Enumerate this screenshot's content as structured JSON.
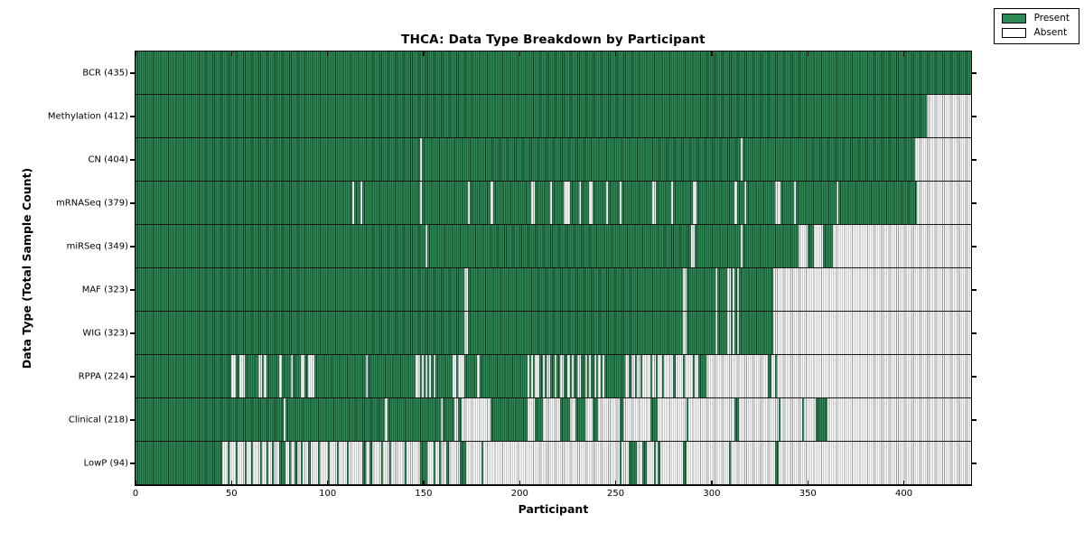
{
  "legend": {
    "present_label": "Present",
    "absent_label": "Absent"
  },
  "colors": {
    "present_fill": "#2e8b57",
    "present_edge": "#123c25",
    "absent_fill": "#ffffff",
    "absent_edge": "#9a9a9a",
    "frame": "#000000",
    "text": "#000000"
  },
  "chart_data": {
    "type": "heatmap",
    "title": "THCA: Data Type Breakdown by Participant",
    "xlabel": "Participant",
    "ylabel": "Data Type (Total Sample Count)",
    "x_range": [
      0,
      435
    ],
    "x_ticks": [
      0,
      50,
      100,
      150,
      200,
      250,
      300,
      350,
      400
    ],
    "grid": false,
    "legend": [
      "Present",
      "Absent"
    ],
    "legend_position": "upper right",
    "cell_states": {
      "present": 1,
      "absent": 0
    },
    "rows": [
      {
        "data_type": "BCR",
        "total": 435,
        "label": "BCR (435)",
        "present_segments": [
          [
            0,
            435
          ]
        ]
      },
      {
        "data_type": "Methylation",
        "total": 412,
        "label": "Methylation (412)",
        "present_segments": [
          [
            0,
            412
          ]
        ]
      },
      {
        "data_type": "CN",
        "total": 404,
        "label": "CN (404)",
        "present_segments": [
          [
            0,
            148
          ],
          [
            149,
            315
          ],
          [
            316,
            406
          ]
        ]
      },
      {
        "data_type": "mRNASeq",
        "total": 379,
        "label": "mRNASeq (379)",
        "present_segments": [
          [
            0,
            113
          ],
          [
            114,
            117
          ],
          [
            118,
            148
          ],
          [
            149,
            173
          ],
          [
            174,
            185
          ],
          [
            186,
            206
          ],
          [
            208,
            216
          ],
          [
            217,
            223
          ],
          [
            226,
            231
          ],
          [
            232,
            236
          ],
          [
            238,
            245
          ],
          [
            246,
            252
          ],
          [
            253,
            269
          ],
          [
            271,
            279
          ],
          [
            280,
            290
          ],
          [
            292,
            312
          ],
          [
            313,
            317
          ],
          [
            318,
            333
          ],
          [
            336,
            343
          ],
          [
            344,
            365
          ],
          [
            366,
            407
          ]
        ]
      },
      {
        "data_type": "miRSeq",
        "total": 349,
        "label": "miRSeq (349)",
        "present_segments": [
          [
            0,
            151
          ],
          [
            152,
            289
          ],
          [
            291,
            315
          ],
          [
            316,
            345
          ],
          [
            350,
            353
          ],
          [
            358,
            363
          ]
        ]
      },
      {
        "data_type": "MAF",
        "total": 323,
        "label": "MAF (323)",
        "present_segments": [
          [
            0,
            171
          ],
          [
            173,
            285
          ],
          [
            287,
            302
          ],
          [
            303,
            308
          ],
          [
            310,
            311
          ],
          [
            312,
            313
          ],
          [
            314,
            332
          ]
        ]
      },
      {
        "data_type": "WIG",
        "total": 323,
        "label": "WIG (323)",
        "present_segments": [
          [
            0,
            171
          ],
          [
            173,
            285
          ],
          [
            287,
            302
          ],
          [
            303,
            308
          ],
          [
            310,
            311
          ],
          [
            312,
            313
          ],
          [
            314,
            332
          ]
        ]
      },
      {
        "data_type": "RPPA",
        "total": 224,
        "label": "RPPA (224)",
        "present_segments": [
          [
            0,
            50
          ],
          [
            52,
            54
          ],
          [
            57,
            64
          ],
          [
            66,
            67
          ],
          [
            68,
            75
          ],
          [
            76,
            81
          ],
          [
            82,
            86
          ],
          [
            88,
            90
          ],
          [
            93,
            120
          ],
          [
            121,
            146
          ],
          [
            148,
            149
          ],
          [
            150,
            151
          ],
          [
            152,
            153
          ],
          [
            154,
            155
          ],
          [
            156,
            165
          ],
          [
            167,
            168
          ],
          [
            171,
            178
          ],
          [
            179,
            204
          ],
          [
            205,
            206
          ],
          [
            207,
            208
          ],
          [
            210,
            212
          ],
          [
            213,
            214
          ],
          [
            216,
            218
          ],
          [
            219,
            221
          ],
          [
            223,
            225
          ],
          [
            226,
            227
          ],
          [
            228,
            230
          ],
          [
            232,
            234
          ],
          [
            235,
            236
          ],
          [
            237,
            239
          ],
          [
            240,
            241
          ],
          [
            242,
            243
          ],
          [
            244,
            255
          ],
          [
            257,
            258
          ],
          [
            260,
            261
          ],
          [
            263,
            264
          ],
          [
            268,
            269
          ],
          [
            271,
            272
          ],
          [
            274,
            275
          ],
          [
            280,
            281
          ],
          [
            285,
            286
          ],
          [
            290,
            291
          ],
          [
            293,
            297
          ],
          [
            329,
            331
          ],
          [
            333,
            334
          ]
        ]
      },
      {
        "data_type": "Clinical",
        "total": 218,
        "label": "Clinical (218)",
        "present_segments": [
          [
            0,
            77
          ],
          [
            78,
            130
          ],
          [
            131,
            159
          ],
          [
            160,
            166
          ],
          [
            168,
            170
          ],
          [
            185,
            204
          ],
          [
            208,
            212
          ],
          [
            221,
            226
          ],
          [
            229,
            234
          ],
          [
            238,
            241
          ],
          [
            252,
            254
          ],
          [
            268,
            272
          ],
          [
            287,
            288
          ],
          [
            312,
            314
          ],
          [
            335,
            336
          ],
          [
            347,
            348
          ],
          [
            354,
            360
          ]
        ]
      },
      {
        "data_type": "LowP",
        "total": 94,
        "label": "LowP (94)",
        "present_segments": [
          [
            0,
            45
          ],
          [
            48,
            49
          ],
          [
            52,
            53
          ],
          [
            57,
            58
          ],
          [
            60,
            61
          ],
          [
            65,
            66
          ],
          [
            68,
            69
          ],
          [
            71,
            72
          ],
          [
            75,
            78
          ],
          [
            80,
            81
          ],
          [
            83,
            84
          ],
          [
            86,
            87
          ],
          [
            90,
            91
          ],
          [
            95,
            96
          ],
          [
            100,
            101
          ],
          [
            105,
            106
          ],
          [
            110,
            111
          ],
          [
            118,
            120
          ],
          [
            122,
            123
          ],
          [
            128,
            129
          ],
          [
            132,
            133
          ],
          [
            140,
            141
          ],
          [
            148,
            152
          ],
          [
            155,
            156
          ],
          [
            158,
            159
          ],
          [
            162,
            163
          ],
          [
            169,
            172
          ],
          [
            180,
            181
          ],
          [
            252,
            253
          ],
          [
            257,
            261
          ],
          [
            264,
            266
          ],
          [
            270,
            271
          ],
          [
            272,
            273
          ],
          [
            285,
            287
          ],
          [
            309,
            310
          ],
          [
            333,
            335
          ]
        ]
      }
    ]
  }
}
